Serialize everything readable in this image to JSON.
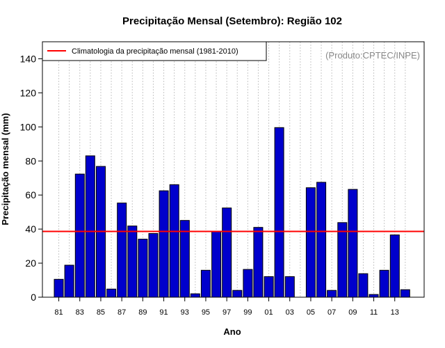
{
  "colors": {
    "bar_fill": "#0000cc",
    "bar_stroke": "#000000",
    "climatology_line": "#ff0000",
    "grid": "#c8c8c8",
    "source_text": "#888888"
  },
  "chart_data": {
    "type": "bar",
    "title": "Precipitação Mensal (Setembro): Região 102",
    "xlabel": "Ano",
    "ylabel": "Precipitação mensal (mm)",
    "ylim": [
      0,
      150
    ],
    "yticks": [
      0,
      20,
      40,
      60,
      80,
      100,
      120,
      140
    ],
    "grid": "vertical dotted",
    "categories": [
      "1981",
      "1982",
      "1983",
      "1984",
      "1985",
      "1986",
      "1987",
      "1988",
      "1989",
      "1990",
      "1991",
      "1992",
      "1993",
      "1994",
      "1995",
      "1996",
      "1997",
      "1998",
      "1999",
      "2000",
      "2001",
      "2002",
      "2003",
      "2004",
      "2005",
      "2006",
      "2007",
      "2008",
      "2009",
      "2010",
      "2011",
      "2012",
      "2013",
      "2014"
    ],
    "x_tick_labels": [
      "81",
      "83",
      "85",
      "87",
      "89",
      "91",
      "93",
      "95",
      "97",
      "99",
      "01",
      "03",
      "05",
      "07",
      "09",
      "11",
      "13"
    ],
    "x_tick_every": 2,
    "series": [
      {
        "name": "Precipitação mensal",
        "values": [
          10.5,
          18.8,
          72.3,
          83,
          76.8,
          4.8,
          55.3,
          41.8,
          34.1,
          37.4,
          62.5,
          66.1,
          45.1,
          2,
          15.8,
          38.6,
          52.4,
          4,
          16.3,
          41,
          12.1,
          99.6,
          12.1,
          0,
          64.3,
          67.5,
          4,
          43.8,
          63.3,
          13.8,
          1.6,
          15.8,
          36.6,
          4.4
        ]
      }
    ],
    "climatology": {
      "label": "Climatologia da precipitação mensal (1981-2010)",
      "value": 38.6
    },
    "legend_position": "top-left",
    "annotation": "(Produto:CPTEC/INPE)"
  }
}
